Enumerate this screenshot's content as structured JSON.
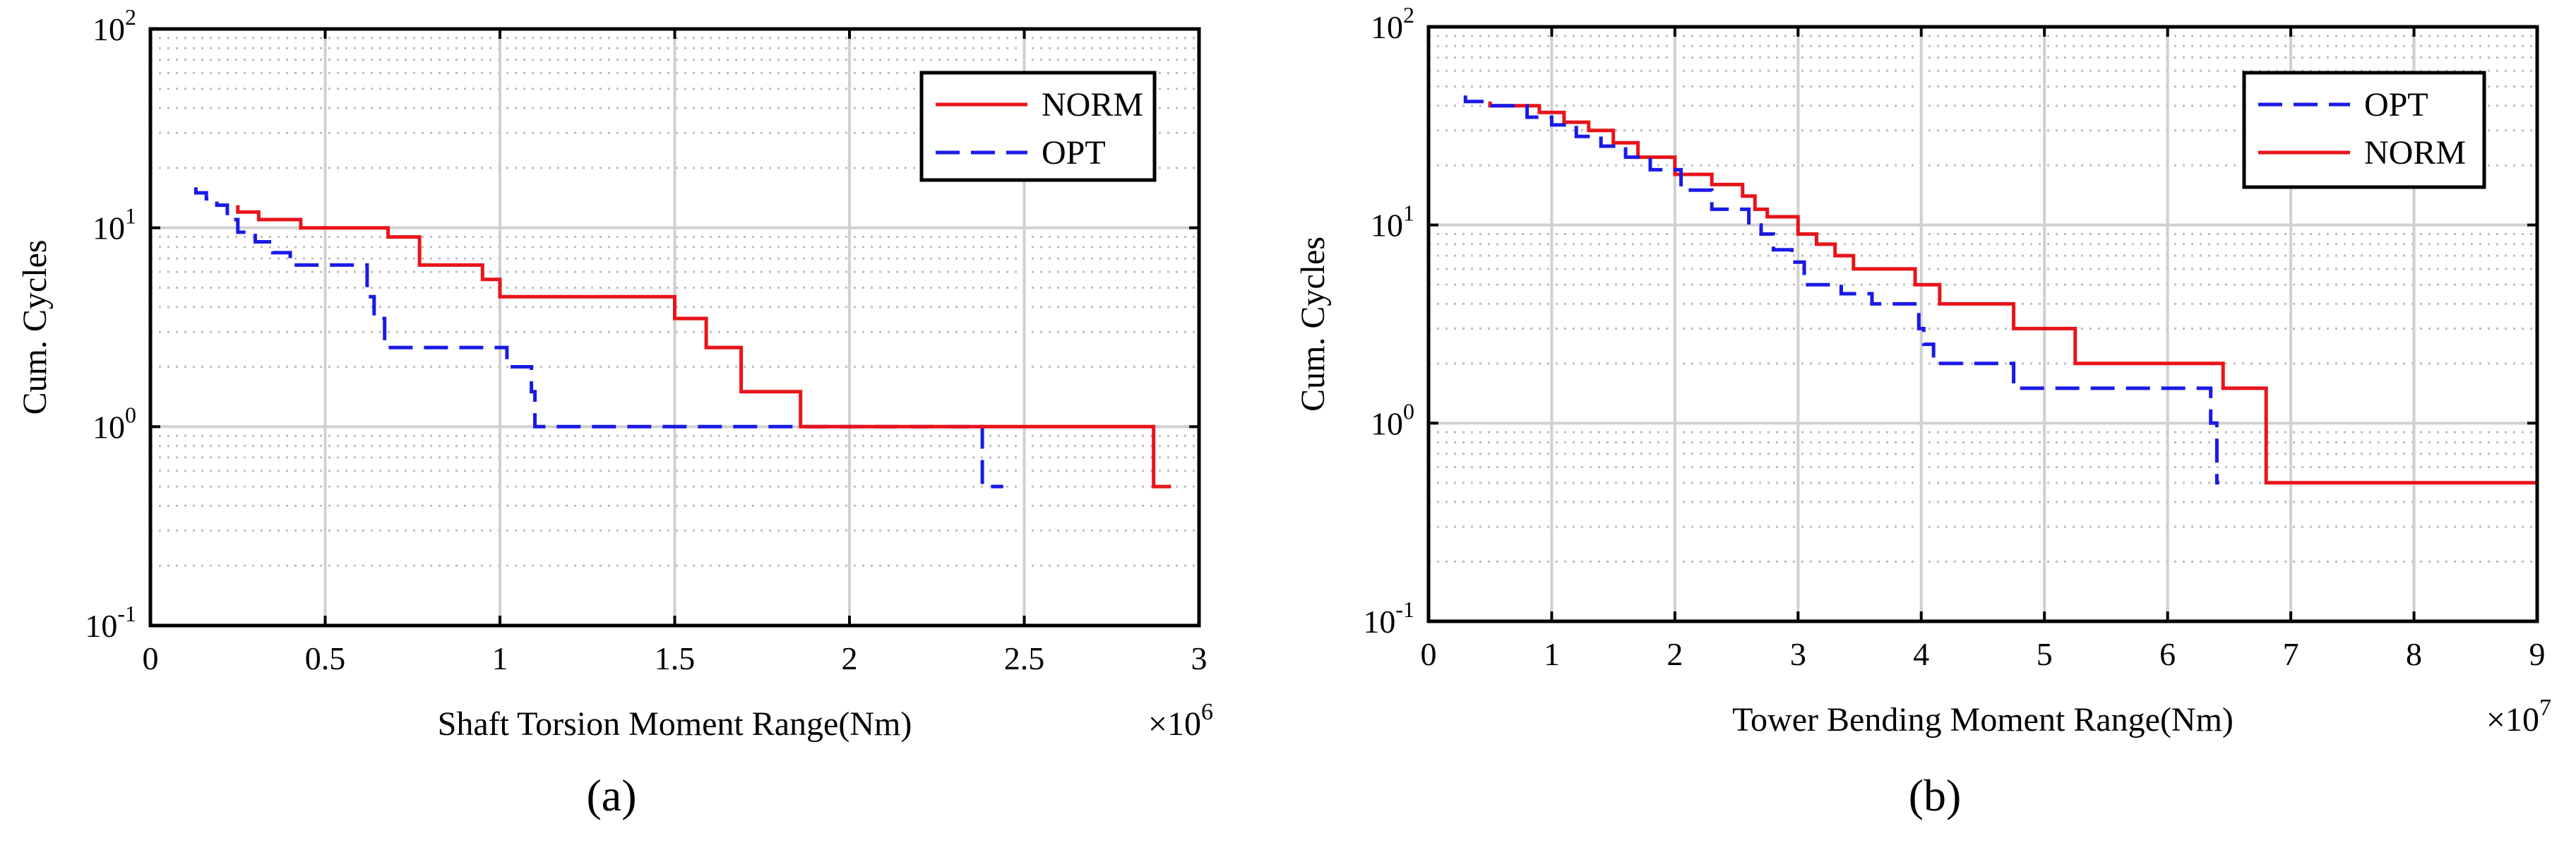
{
  "chart_data": [
    {
      "type": "line",
      "panel_label": "(a)",
      "xlabel": "Shaft Torsion Moment Range(Nm)",
      "ylabel": "Cum. Cycles",
      "x_multiplier": "×10",
      "x_multiplier_exp": "6",
      "xlim": [
        0,
        3
      ],
      "ylim": [
        0.1,
        100
      ],
      "yscale": "log",
      "grid": true,
      "xticks": [
        "0",
        "0.5",
        "1",
        "1.5",
        "2",
        "2.5",
        "3"
      ],
      "yticks": [
        {
          "base": "10",
          "exp": "-1"
        },
        {
          "base": "10",
          "exp": "0"
        },
        {
          "base": "10",
          "exp": "1"
        },
        {
          "base": "10",
          "exp": "2"
        }
      ],
      "legend_position": "top-right",
      "series": [
        {
          "name": "NORM",
          "color": "#e8141a",
          "dash": "solid",
          "x": [
            0.25,
            0.25,
            0.31,
            0.31,
            0.43,
            0.43,
            0.68,
            0.68,
            0.77,
            0.77,
            0.95,
            0.95,
            1.0,
            1.0,
            1.5,
            1.5,
            1.59,
            1.59,
            1.69,
            1.69,
            1.86,
            1.86,
            2.87,
            2.87,
            2.92
          ],
          "y": [
            13,
            12,
            12,
            11,
            11,
            10,
            10,
            9,
            9,
            6.5,
            6.5,
            5.5,
            5.5,
            4.5,
            4.5,
            3.5,
            3.5,
            2.5,
            2.5,
            1.5,
            1.5,
            1.0,
            1.0,
            0.5,
            0.5
          ]
        },
        {
          "name": "OPT",
          "color": "#1a1ae6",
          "dash": "dashed",
          "x": [
            0.13,
            0.13,
            0.16,
            0.16,
            0.19,
            0.19,
            0.22,
            0.22,
            0.25,
            0.25,
            0.3,
            0.3,
            0.35,
            0.35,
            0.4,
            0.4,
            0.62,
            0.62,
            0.64,
            0.64,
            0.67,
            0.67,
            0.71,
            0.71,
            1.02,
            1.02,
            1.09,
            1.09,
            1.1,
            1.1,
            2.38,
            2.38,
            2.44
          ],
          "y": [
            16,
            15,
            15,
            14,
            14,
            13,
            13,
            11,
            11,
            9.5,
            9.5,
            8.5,
            8.5,
            7.5,
            7.5,
            6.5,
            6.5,
            4.5,
            4.5,
            3.5,
            3.5,
            2.5,
            2.5,
            2.5,
            2.5,
            2.0,
            2.0,
            1.5,
            1.5,
            1.0,
            1.0,
            0.5,
            0.5
          ]
        }
      ]
    },
    {
      "type": "line",
      "panel_label": "(b)",
      "xlabel": "Tower Bending Moment Range(Nm)",
      "ylabel": "Cum. Cycles",
      "x_multiplier": "×10",
      "x_multiplier_exp": "7",
      "xlim": [
        0,
        9
      ],
      "ylim": [
        0.1,
        100
      ],
      "yscale": "log",
      "grid": true,
      "xticks": [
        "0",
        "1",
        "2",
        "3",
        "4",
        "5",
        "6",
        "7",
        "8",
        "9"
      ],
      "yticks": [
        {
          "base": "10",
          "exp": "-1"
        },
        {
          "base": "10",
          "exp": "0"
        },
        {
          "base": "10",
          "exp": "1"
        },
        {
          "base": "10",
          "exp": "2"
        }
      ],
      "legend_position": "top-right",
      "series": [
        {
          "name": "OPT",
          "color": "#1a1ae6",
          "dash": "dashed",
          "x": [
            0.3,
            0.3,
            0.5,
            0.5,
            0.8,
            0.8,
            1.0,
            1.0,
            1.2,
            1.2,
            1.4,
            1.4,
            1.6,
            1.6,
            1.8,
            1.8,
            2.05,
            2.05,
            2.3,
            2.3,
            2.6,
            2.6,
            2.7,
            2.7,
            2.8,
            2.8,
            2.95,
            2.95,
            3.05,
            3.05,
            3.35,
            3.35,
            3.6,
            3.6,
            3.98,
            3.98,
            4.02,
            4.02,
            4.1,
            4.1,
            4.75,
            4.75,
            6.35,
            6.35,
            6.4,
            6.4,
            6.42
          ],
          "y": [
            45,
            42,
            42,
            40,
            40,
            35,
            35,
            32,
            32,
            28,
            28,
            25,
            25,
            22,
            22,
            19,
            19,
            15,
            15,
            12,
            12,
            10,
            10,
            9,
            9,
            7.5,
            7.5,
            6.5,
            6.5,
            5.0,
            5.0,
            4.5,
            4.5,
            4.0,
            4.0,
            3.0,
            3.0,
            2.5,
            2.5,
            2.0,
            2.0,
            1.5,
            1.5,
            1.0,
            1.0,
            0.5,
            0.5
          ]
        },
        {
          "name": "NORM",
          "color": "#e8141a",
          "dash": "solid",
          "x": [
            0.5,
            0.5,
            0.9,
            0.9,
            1.1,
            1.1,
            1.3,
            1.3,
            1.5,
            1.5,
            1.7,
            1.7,
            2.0,
            2.0,
            2.3,
            2.3,
            2.55,
            2.55,
            2.65,
            2.65,
            2.75,
            2.75,
            3.0,
            3.0,
            3.15,
            3.15,
            3.3,
            3.3,
            3.45,
            3.45,
            3.95,
            3.95,
            4.15,
            4.15,
            4.75,
            4.75,
            5.25,
            5.25,
            6.45,
            6.45,
            6.8,
            6.8,
            9.0
          ],
          "y": [
            42,
            40,
            40,
            37,
            37,
            33,
            33,
            30,
            30,
            26,
            26,
            22,
            22,
            18,
            18,
            16,
            16,
            14,
            14,
            12,
            12,
            11,
            11,
            9,
            9,
            8,
            8,
            7,
            7,
            6,
            6,
            5,
            5,
            4,
            4,
            3,
            3,
            2,
            2,
            1.5,
            1.5,
            0.5,
            0.5
          ]
        }
      ]
    }
  ]
}
